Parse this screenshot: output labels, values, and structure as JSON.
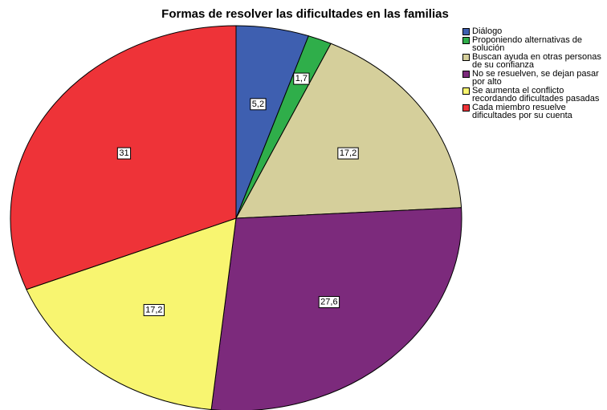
{
  "chart_data": {
    "type": "pie",
    "title": "Formas de resolver las dificultades en las familias",
    "categories": [
      "Diálogo",
      "Proponiendo alternativas de solución",
      "Buscan ayuda en otras personas de su confianza",
      "No se resuelven, se dejan pasar por alto",
      "Se aumenta el conflicto recordando dificultades pasadas",
      "Cada miembro resuelve dificultades por su cuenta"
    ],
    "values": [
      5.2,
      1.7,
      17.2,
      27.6,
      17.2,
      31
    ],
    "value_labels": [
      "5,2",
      "1,7",
      "17,2",
      "27,6",
      "17,2",
      "31"
    ],
    "colors": [
      "#3e5fb0",
      "#2fae4a",
      "#d5cf9b",
      "#7c2a7c",
      "#f8f570",
      "#ee3338"
    ],
    "legend": "right"
  }
}
